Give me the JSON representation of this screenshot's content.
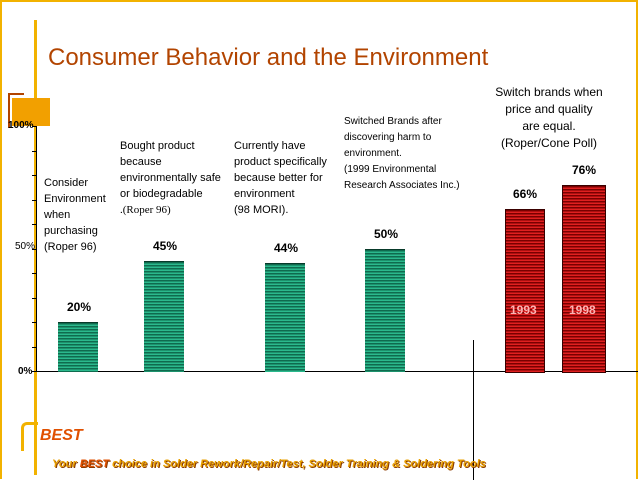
{
  "slide": {
    "title": "Consumer Behavior and the Environment",
    "tagline_prefix": "Your",
    "tagline_brand": "BEST",
    "tagline_rest": "choice in Solder Rework/Repair/Test, Solder Training & Soldering Tools",
    "logo_text": "BEST",
    "colors": {
      "title": "#b24400",
      "accent": "#f2b200",
      "green_bar": "#2bb98d",
      "red_bar": "#e02020"
    }
  },
  "chart_data": {
    "type": "bar",
    "title": "",
    "xlabel": "",
    "ylabel": "",
    "ylim": [
      0,
      100
    ],
    "yticks": [
      "0%",
      "50%",
      "100%"
    ],
    "bars": [
      {
        "value": 20,
        "label": "20%",
        "color": "green"
      },
      {
        "value": 45,
        "label": "45%",
        "color": "green"
      },
      {
        "value": 44,
        "label": "44%",
        "color": "green"
      },
      {
        "value": 50,
        "label": "50%",
        "color": "green"
      },
      {
        "value": 66,
        "label": "66%",
        "color": "red",
        "year": "1993"
      },
      {
        "value": 76,
        "label": "76%",
        "color": "red",
        "year": "1998"
      }
    ],
    "annotations": {
      "a1": [
        "Consider",
        "Environment",
        "when",
        "purchasing",
        "(Roper 96)"
      ],
      "a2": [
        "Bought product",
        "because",
        "environmentally safe",
        "or biodegradable",
        ".(Roper 96)"
      ],
      "a3": [
        "Currently have",
        "product specifically",
        "because better for",
        "environment",
        "(98 MORI)."
      ],
      "a4": [
        "Switched Brands after",
        "discovering harm to",
        "environment.",
        "(1999 Environmental",
        "Research Associates Inc.)"
      ],
      "a5": [
        "Switch brands when",
        "price and quality",
        "are equal.",
        "(Roper/Cone Poll)"
      ]
    }
  }
}
